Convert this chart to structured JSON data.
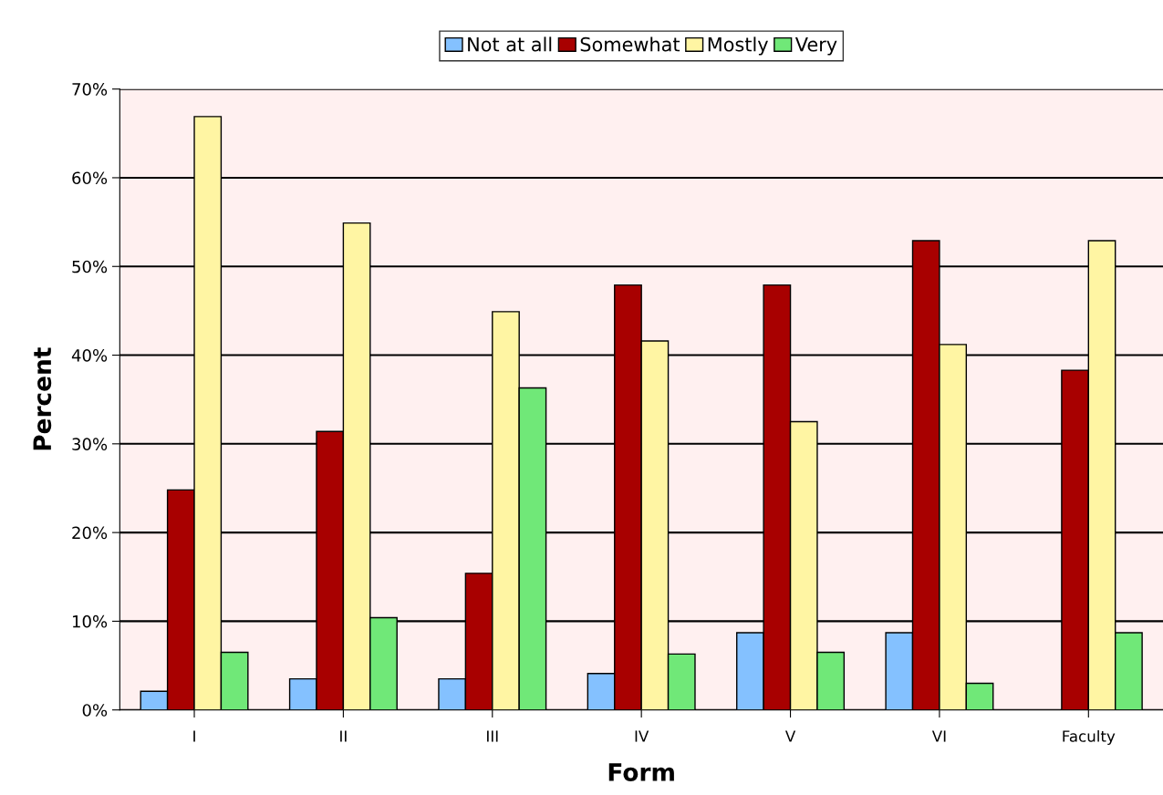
{
  "chart_data": {
    "type": "bar",
    "xlabel": "Form",
    "ylabel": "Percent",
    "categories": [
      "I",
      "II",
      "III",
      "IV",
      "V",
      "VI",
      "Faculty"
    ],
    "series": [
      {
        "name": "Not at all",
        "color": "#84c1ff",
        "values": [
          2.1,
          3.5,
          3.5,
          4.1,
          8.7,
          8.7,
          null
        ]
      },
      {
        "name": "Somewhat",
        "color": "#a80000",
        "values": [
          24.8,
          31.4,
          15.4,
          47.9,
          47.9,
          52.9,
          38.3
        ]
      },
      {
        "name": "Mostly",
        "color": "#fff5a3",
        "values": [
          66.9,
          54.9,
          44.9,
          41.6,
          32.5,
          41.2,
          52.9
        ]
      },
      {
        "name": "Very",
        "color": "#70e878",
        "values": [
          6.5,
          10.4,
          36.3,
          6.3,
          6.5,
          3.0,
          8.7
        ]
      }
    ],
    "ylim": [
      0,
      70
    ],
    "yticks": [
      {
        "value": 0,
        "label": "0%"
      },
      {
        "value": 10,
        "label": "10%"
      },
      {
        "value": 20,
        "label": "20%"
      },
      {
        "value": 30,
        "label": "30%"
      },
      {
        "value": 40,
        "label": "40%"
      },
      {
        "value": 50,
        "label": "50%"
      },
      {
        "value": 60,
        "label": "60%"
      },
      {
        "value": 70,
        "label": "70%"
      }
    ],
    "grid": "y",
    "legend": "top"
  }
}
